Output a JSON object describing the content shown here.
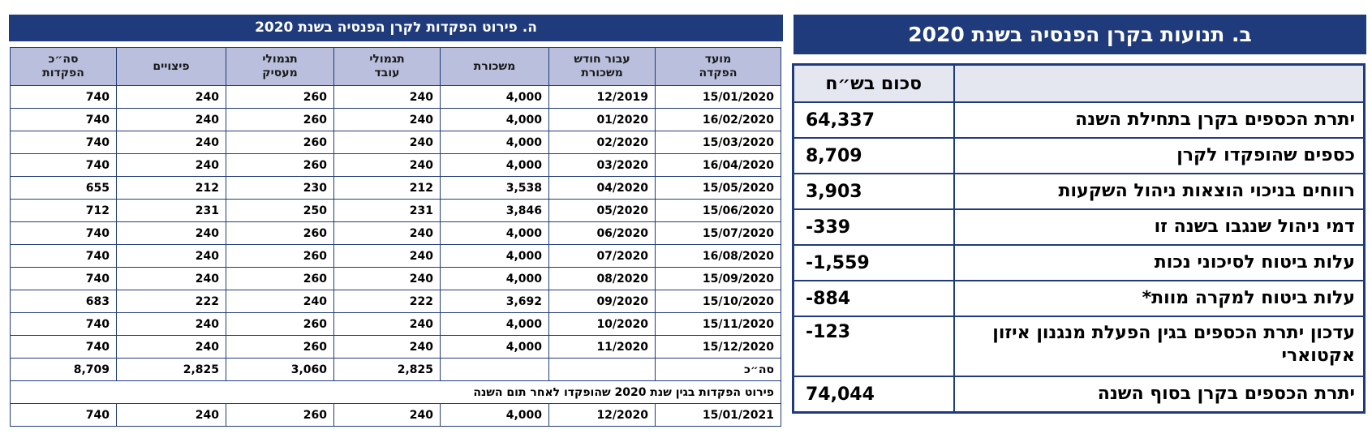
{
  "deposits": {
    "title": "ה. פירוט הפקדות לקרן הפנסיה בשנת 2020",
    "columns": [
      "מועד\nהפקדה",
      "עבור חודש\nמשכורת",
      "משכורת",
      "תגמולי\nעובד",
      "תגמולי\nמעסיק",
      "פיצויים",
      "סה״כ\nהפקדות"
    ],
    "rows": [
      [
        "15/01/2020",
        "12/2019",
        "4,000",
        "240",
        "260",
        "240",
        "740"
      ],
      [
        "16/02/2020",
        "01/2020",
        "4,000",
        "240",
        "260",
        "240",
        "740"
      ],
      [
        "15/03/2020",
        "02/2020",
        "4,000",
        "240",
        "260",
        "240",
        "740"
      ],
      [
        "16/04/2020",
        "03/2020",
        "4,000",
        "240",
        "260",
        "240",
        "740"
      ],
      [
        "15/05/2020",
        "04/2020",
        "3,538",
        "212",
        "230",
        "212",
        "655"
      ],
      [
        "15/06/2020",
        "05/2020",
        "3,846",
        "231",
        "250",
        "231",
        "712"
      ],
      [
        "15/07/2020",
        "06/2020",
        "4,000",
        "240",
        "260",
        "240",
        "740"
      ],
      [
        "16/08/2020",
        "07/2020",
        "4,000",
        "240",
        "260",
        "240",
        "740"
      ],
      [
        "15/09/2020",
        "08/2020",
        "4,000",
        "240",
        "260",
        "240",
        "740"
      ],
      [
        "15/10/2020",
        "09/2020",
        "3,692",
        "222",
        "240",
        "222",
        "683"
      ],
      [
        "15/11/2020",
        "10/2020",
        "4,000",
        "240",
        "260",
        "240",
        "740"
      ],
      [
        "15/12/2020",
        "11/2020",
        "4,000",
        "240",
        "260",
        "240",
        "740"
      ]
    ],
    "total": {
      "label": "סה״כ",
      "employee": "2,825",
      "employer": "3,060",
      "severance": "2,825",
      "sum": "8,709"
    },
    "note": "פירוט הפקדות בגין שנת 2020 שהופקדו לאחר תום השנה",
    "after_rows": [
      [
        "15/01/2021",
        "12/2020",
        "4,000",
        "240",
        "260",
        "240",
        "740"
      ]
    ]
  },
  "movements": {
    "title": "ב. תנועות בקרן הפנסיה בשנת 2020",
    "header": "סכום בש״ח",
    "rows": [
      {
        "label": "יתרת הכספים בקרן בתחילת השנה",
        "amount": "64,337"
      },
      {
        "label": "כספים שהופקדו לקרן",
        "amount": "8,709"
      },
      {
        "label": "רווחים בניכוי הוצאות ניהול השקעות",
        "amount": "3,903"
      },
      {
        "label": "דמי ניהול שנגבו בשנה זו",
        "amount": "-339"
      },
      {
        "label": "עלות ביטוח לסיכוני נכות",
        "amount": "-1,559"
      },
      {
        "label": "עלות ביטוח למקרה מוות*",
        "amount": "-884"
      },
      {
        "label": "עדכון יתרת הכספים בגין הפעלת מנגנון איזון אקטוארי",
        "amount": "-123"
      },
      {
        "label": "יתרת הכספים בקרן בסוף השנה",
        "amount": "74,044"
      }
    ]
  }
}
